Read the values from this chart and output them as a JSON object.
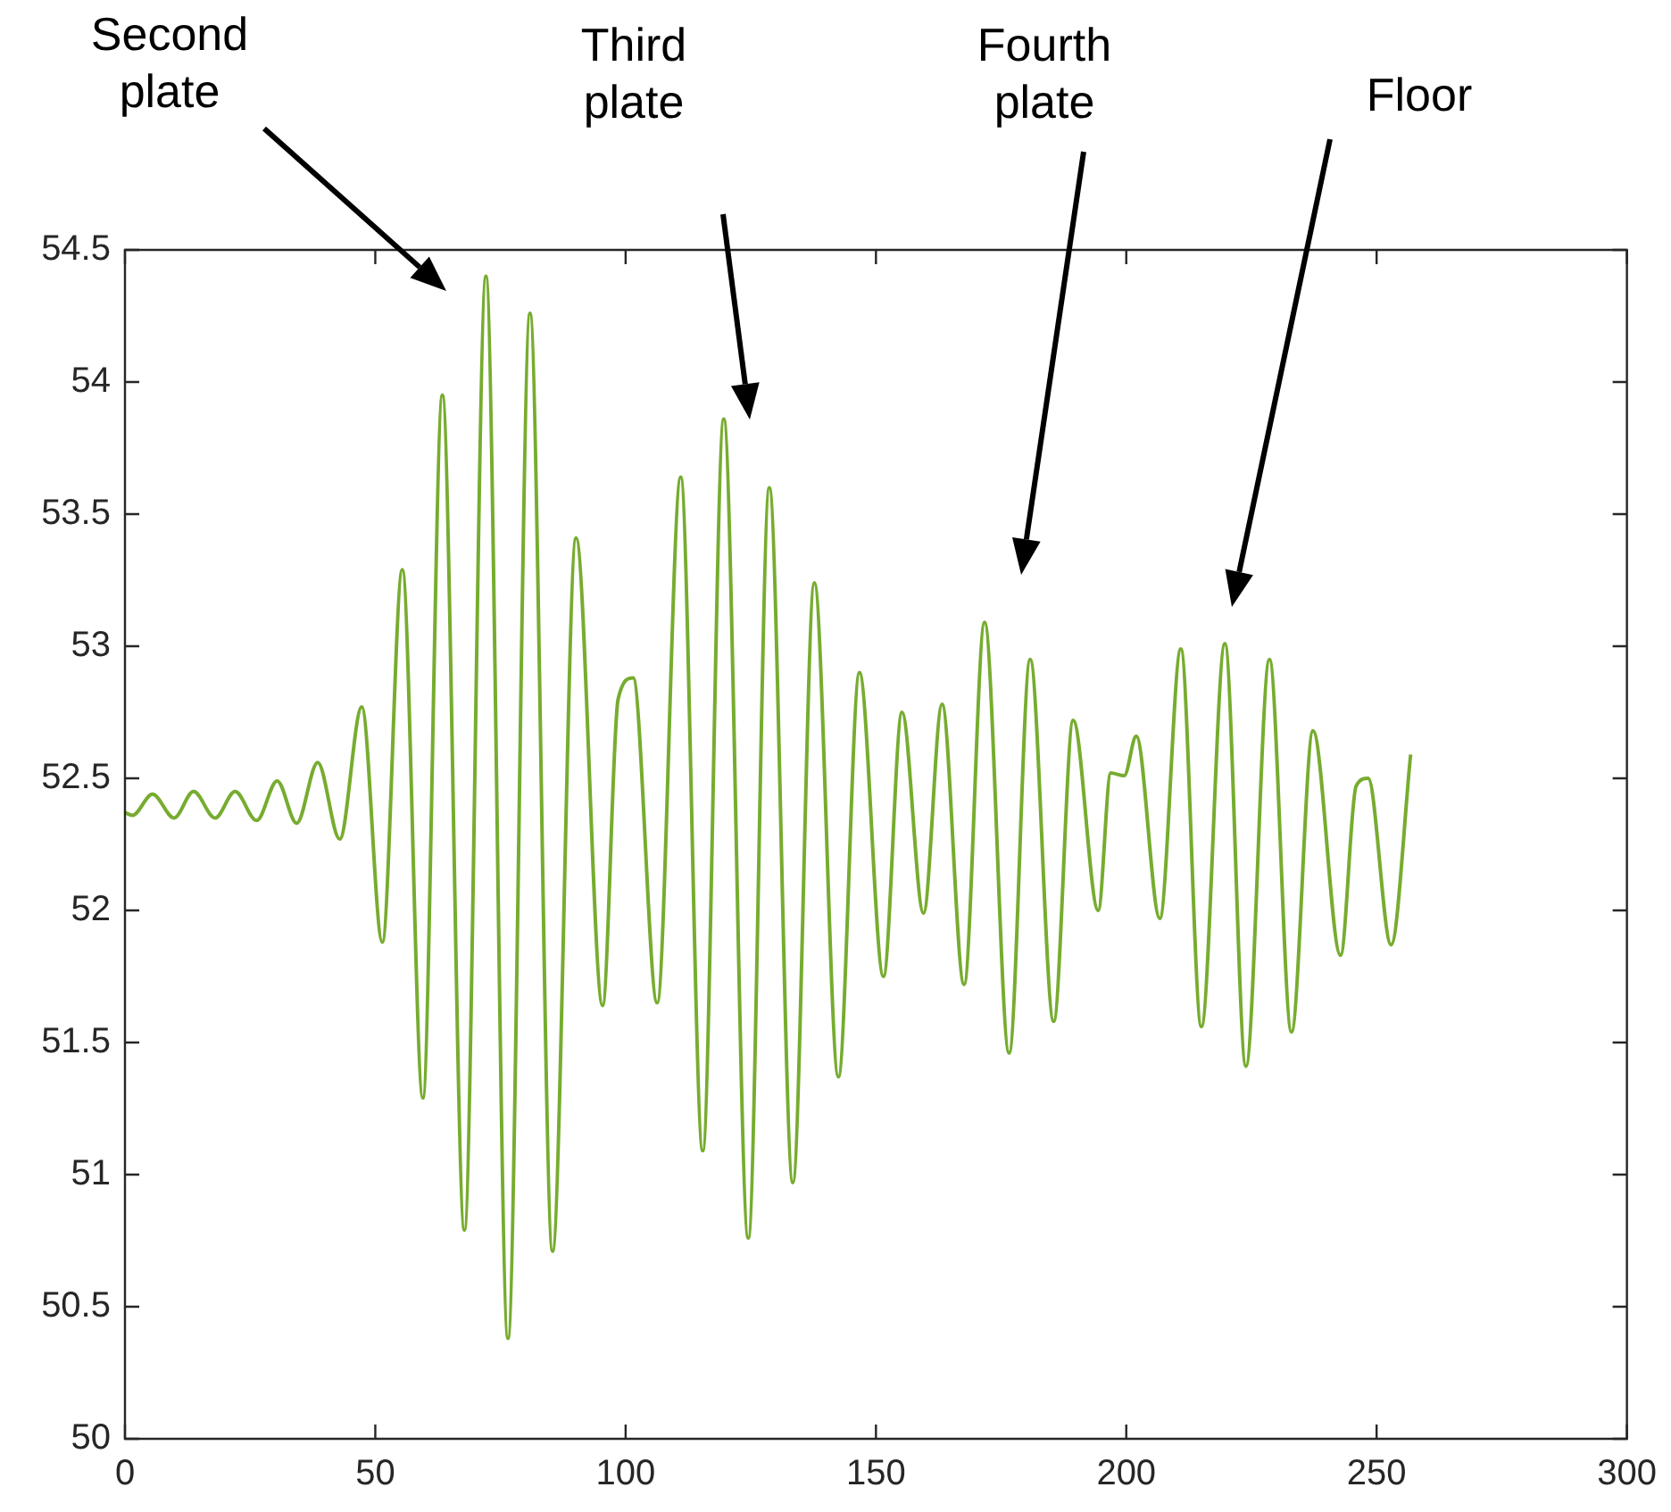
{
  "chart_data": {
    "type": "line",
    "x": [
      0,
      1.5,
      5.5,
      9.8,
      13.7,
      18,
      22,
      26.3,
      30.4,
      34.3,
      38.5,
      42.9,
      47.3,
      51.4,
      55.4,
      59.5,
      63.4,
      67.8,
      72.1,
      76.5,
      80.9,
      85.4,
      90.1,
      95.4,
      98.5,
      101.5,
      106.3,
      111,
      115.4,
      119.6,
      124.5,
      128.7,
      133.4,
      137.7,
      142.5,
      146.7,
      151.5,
      155.2,
      159.5,
      163.2,
      167.6,
      171.7,
      176.6,
      180.8,
      185.5,
      189.4,
      194.4,
      196.9,
      199.6,
      202,
      206.7,
      210.9,
      215,
      219.7,
      223.9,
      228.6,
      233,
      237.3,
      242.8,
      245.9,
      248.3,
      252.9,
      256.8
    ],
    "series": [
      {
        "color": "#77ac30",
        "values": [
          52.37,
          52.36,
          52.44,
          52.35,
          52.45,
          52.35,
          52.45,
          52.34,
          52.49,
          52.33,
          52.56,
          52.27,
          52.77,
          51.88,
          53.29,
          51.29,
          53.95,
          50.79,
          54.4,
          50.38,
          54.26,
          50.71,
          53.41,
          51.64,
          52.8,
          52.88,
          51.65,
          53.64,
          51.09,
          53.86,
          50.76,
          53.6,
          50.97,
          53.24,
          51.37,
          52.9,
          51.75,
          52.75,
          51.99,
          52.78,
          51.72,
          53.09,
          51.46,
          52.95,
          51.58,
          52.72,
          52.0,
          52.52,
          52.51,
          52.66,
          51.97,
          52.99,
          51.56,
          53.01,
          51.41,
          52.95,
          51.54,
          52.68,
          51.83,
          52.47,
          52.5,
          51.87,
          52.59
        ]
      }
    ],
    "xlim": [
      0,
      300
    ],
    "xticks": [
      0,
      50,
      100,
      150,
      200,
      250,
      300
    ],
    "ylim": [
      50,
      54.5
    ],
    "yticks": [
      50,
      50.5,
      51,
      51.5,
      52,
      52.5,
      53,
      53.5,
      54,
      54.5
    ],
    "grid": false,
    "legend": false,
    "marker": "none",
    "line_style": "solid",
    "annotations": [
      "Second\nplate",
      "Third\nplate",
      "Fourth\nplate",
      "Floor"
    ]
  }
}
